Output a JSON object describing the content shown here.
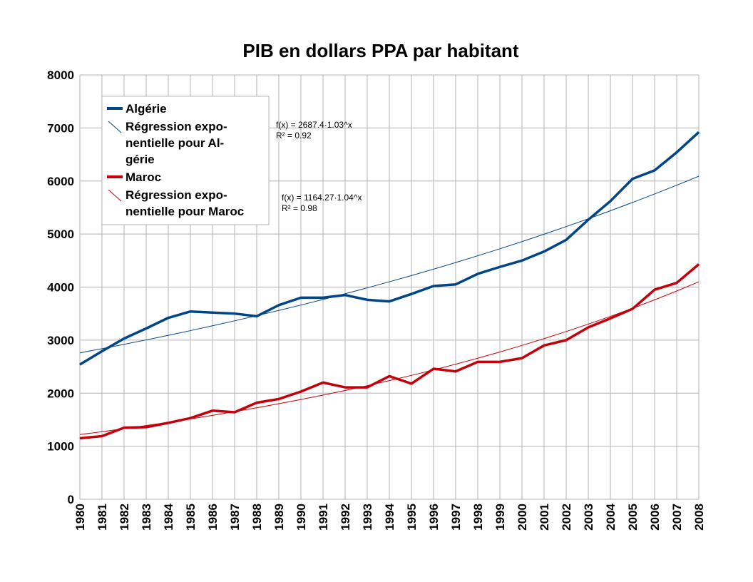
{
  "chart_data": {
    "type": "line",
    "title": "PIB en dollars  PPA par habitant",
    "xlabel": "",
    "ylabel": "",
    "ylim": [
      0,
      8000
    ],
    "yticks": [
      0,
      1000,
      2000,
      3000,
      4000,
      5000,
      6000,
      7000,
      8000
    ],
    "grid": true,
    "legend_position": "top-left",
    "categories": [
      "1980",
      "1981",
      "1982",
      "1983",
      "1984",
      "1985",
      "1986",
      "1987",
      "1988",
      "1989",
      "1990",
      "1991",
      "1992",
      "1993",
      "1994",
      "1995",
      "1996",
      "1997",
      "1998",
      "1999",
      "2000",
      "2001",
      "2002",
      "2003",
      "2004",
      "2005",
      "2006",
      "2007",
      "2008"
    ],
    "series": [
      {
        "name": "Algérie",
        "color": "#004586",
        "values": [
          2540,
          2790,
          3030,
          3220,
          3420,
          3540,
          3520,
          3500,
          3450,
          3660,
          3800,
          3800,
          3850,
          3760,
          3730,
          3870,
          4020,
          4050,
          4250,
          4380,
          4500,
          4670,
          4890,
          5270,
          5620,
          6040,
          6200,
          6540,
          6920
        ]
      },
      {
        "name": "Maroc",
        "color": "#c5000b",
        "values": [
          1150,
          1190,
          1350,
          1360,
          1440,
          1530,
          1670,
          1640,
          1820,
          1890,
          2030,
          2200,
          2110,
          2110,
          2320,
          2180,
          2460,
          2410,
          2590,
          2590,
          2660,
          2900,
          3000,
          3240,
          3410,
          3590,
          3950,
          4080,
          4430
        ]
      }
    ],
    "trendlines": [
      {
        "name": "Régression exponentielle pour Algérie",
        "legend_lines": [
          "Régression expo-",
          "nentielle pour Al-",
          "gérie"
        ],
        "color": "#004586",
        "type": "exponential",
        "start": 2760,
        "end": 6090,
        "equation": "f(x) = 2687.4·1.03^x",
        "r2": "R² = 0.92"
      },
      {
        "name": "Régression exponentielle pour Maroc",
        "legend_lines": [
          "Régression expo-",
          "nentielle pour Maroc"
        ],
        "color": "#c5000b",
        "type": "exponential",
        "start": 1220,
        "end": 4100,
        "equation": "f(x) = 1164.27·1.04^x",
        "r2": "R² = 0.98"
      }
    ]
  }
}
